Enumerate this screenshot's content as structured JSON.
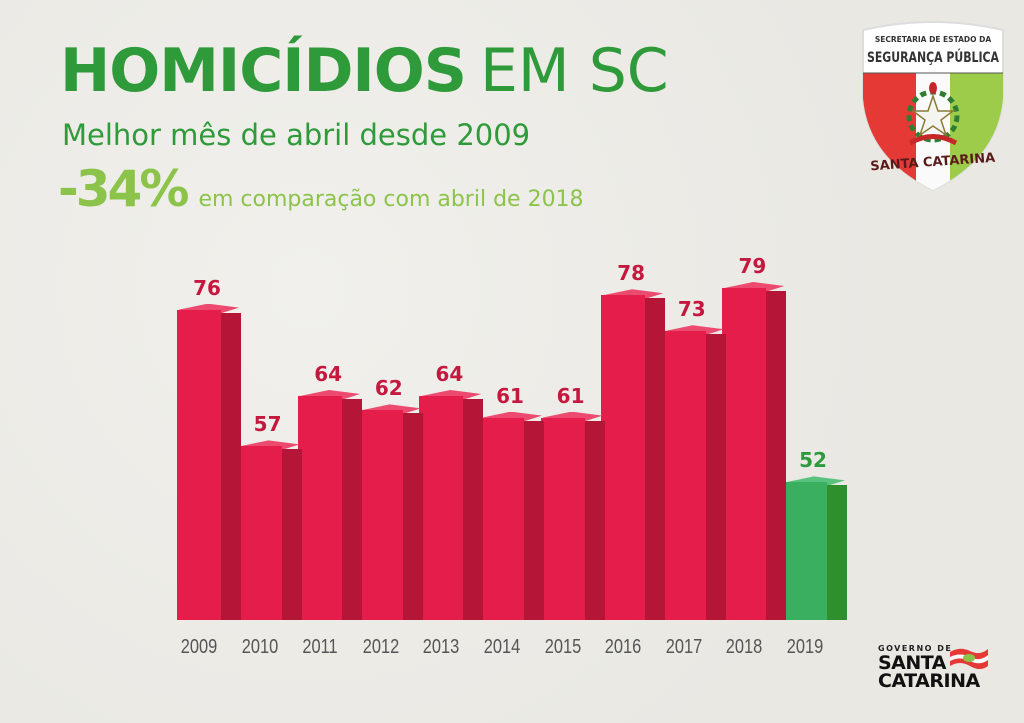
{
  "header": {
    "title_bold": "HOMICÍDIOS",
    "title_light": "EM SC",
    "subtitle": "Melhor mês de abril desde 2009",
    "change_pct": "-34%",
    "change_text": "em comparação com abril de 2018"
  },
  "logos": {
    "badge_top_small": "SECRETARIA DE ESTADO DA",
    "badge_top_big": "SEGURANÇA PÚBLICA",
    "badge_bottom": "SANTA CATARINA",
    "gov_small": "GOVERNO DE",
    "gov_line1": "SANTA",
    "gov_line2": "CATARINA"
  },
  "colors": {
    "title_green": "#2f9a3a",
    "accent_lightgreen": "#8cc34b",
    "bar_red": "#e51d4b",
    "bar_red_side": "#b51638",
    "bar_green": "#3aaf5f",
    "bar_green_side": "#2d8f2d",
    "value_red": "#c4183f",
    "background": "#ecebe6"
  },
  "chart_data": {
    "type": "bar",
    "title": "HOMICÍDIOS EM SC",
    "subtitle": "Melhor mês de abril desde 2009",
    "annotation": "-34% em comparação com abril de 2018",
    "xlabel": "",
    "ylabel": "",
    "grid": false,
    "legend": null,
    "categories": [
      "2009",
      "2010",
      "2011",
      "2012",
      "2013",
      "2014",
      "2015",
      "2016",
      "2017",
      "2018",
      "2019"
    ],
    "values": [
      76,
      57,
      64,
      62,
      64,
      61,
      61,
      78,
      73,
      79,
      52
    ],
    "highlight": {
      "category": "2019",
      "color": "#3aaf5f"
    },
    "data_labels": true
  }
}
